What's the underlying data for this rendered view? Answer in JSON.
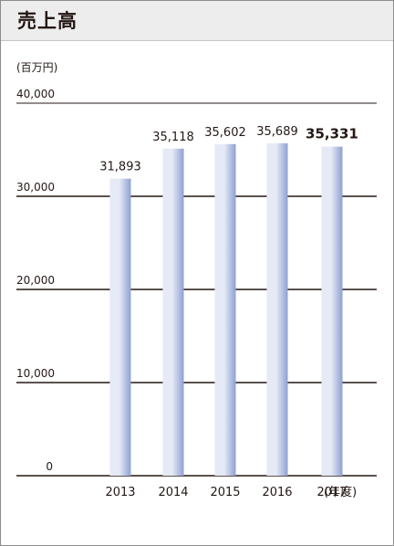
{
  "header": {
    "title": "売上高"
  },
  "chart_data": {
    "type": "bar",
    "unit_label": "(百万円)",
    "xlabel": "(年度)",
    "categories": [
      "2013",
      "2014",
      "2015",
      "2016",
      "2017"
    ],
    "values": [
      31893,
      35118,
      35602,
      35689,
      35331
    ],
    "value_labels": [
      "31,893",
      "35,118",
      "35,602",
      "35,689",
      "35,331"
    ],
    "highlight_index": 4,
    "y_ticks": [
      {
        "value": 0,
        "label": "0"
      },
      {
        "value": 10000,
        "label": "10,000"
      },
      {
        "value": 20000,
        "label": "20,000"
      },
      {
        "value": 30000,
        "label": "30,000"
      },
      {
        "value": 40000,
        "label": "40,000"
      }
    ],
    "ylim": [
      0,
      40000
    ],
    "grid": true,
    "bar_color_light": "#e6eaf6",
    "bar_color_dark": "#8ea0d2"
  }
}
